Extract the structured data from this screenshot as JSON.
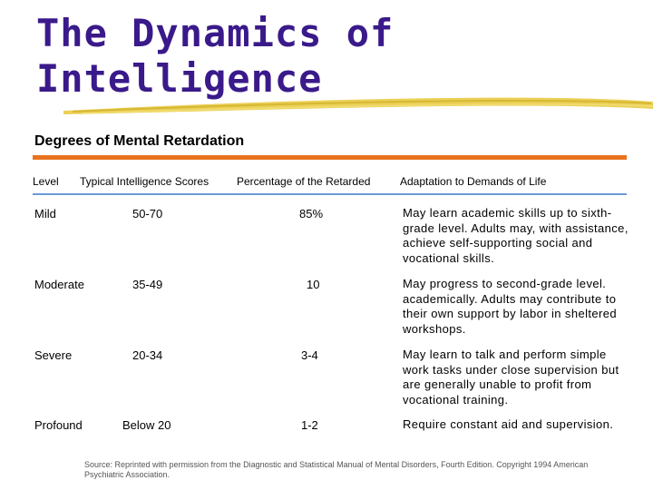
{
  "slide": {
    "title_line1": "The Dynamics of",
    "title_line2": "Intelligence",
    "subtitle": "Degrees of Mental Retardation",
    "colors": {
      "title": "#3a1a8a",
      "orange_rule": "#e8731f",
      "blue_rule": "#6b9bd8",
      "brush_stroke": "#e7c83a"
    }
  },
  "table": {
    "headers": {
      "level": "Level",
      "scores": "Typical Intelligence Scores",
      "percentage": "Percentage of the Retarded",
      "adaptation": "Adaptation to Demands of Life"
    },
    "rows": [
      {
        "level": "Mild",
        "scores": "50-70",
        "percentage": "85%",
        "adaptation": "May learn academic skills up to sixth-grade level. Adults may, with assistance, achieve self-supporting social and vocational skills."
      },
      {
        "level": "Moderate",
        "scores": "35-49",
        "percentage": "10",
        "adaptation": "May progress to second-grade level. academically. Adults may contribute to their own support by labor in sheltered workshops."
      },
      {
        "level": "Severe",
        "scores": "20-34",
        "percentage": "3-4",
        "adaptation": "May learn to talk and perform simple work tasks under close supervision but are generally unable to profit from vocational training."
      },
      {
        "level": "Profound",
        "scores": "Below 20",
        "percentage": "1-2",
        "adaptation": "Require constant aid and supervision."
      }
    ]
  },
  "source": "Source: Reprinted with permission from the Diagnostic and Statistical Manual of Mental Disorders, Fourth Edition. Copyright 1994 American Psychiatric Association."
}
